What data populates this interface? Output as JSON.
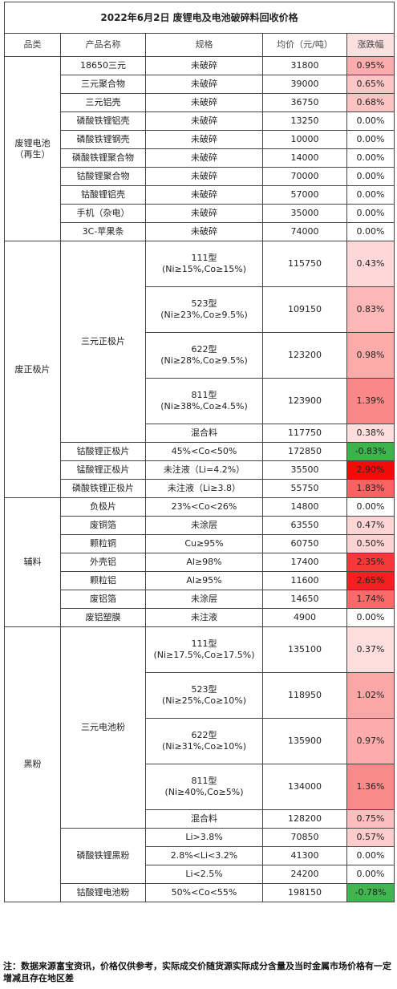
{
  "title": "2022年6月2日 废锂电及电池破碎料回收价格",
  "header": [
    "品类",
    "产品名称",
    "规格",
    "均价（元/吨）",
    "涨跌幅"
  ],
  "groups": [
    {
      "category": "废锂电池（再生）",
      "items": [
        {
          "product": "18650三元",
          "rows": [
            {
              "spec": "未破碎",
              "price": "31800",
              "change": "0.95%"
            }
          ]
        },
        {
          "product": "三元聚合物",
          "rows": [
            {
              "spec": "未破碎",
              "price": "39000",
              "change": "0.65%"
            }
          ]
        },
        {
          "product": "三元铝壳",
          "rows": [
            {
              "spec": "未破碎",
              "price": "36750",
              "change": "0.68%"
            }
          ]
        },
        {
          "product": "磷酸铁锂铝壳",
          "rows": [
            {
              "spec": "未破碎",
              "price": "13250",
              "change": "0.00%"
            }
          ]
        },
        {
          "product": "磷酸铁锂钢壳",
          "rows": [
            {
              "spec": "未破碎",
              "price": "10000",
              "change": "0.00%"
            }
          ]
        },
        {
          "product": "磷酸铁锂聚合物",
          "rows": [
            {
              "spec": "未破碎",
              "price": "14000",
              "change": "0.00%"
            }
          ]
        },
        {
          "product": "钴酸锂聚合物",
          "rows": [
            {
              "spec": "未破碎",
              "price": "70000",
              "change": "0.00%"
            }
          ]
        },
        {
          "product": "钴酸锂铝壳",
          "rows": [
            {
              "spec": "未破碎",
              "price": "57000",
              "change": "0.00%"
            }
          ]
        },
        {
          "product": "手机（杂电）",
          "rows": [
            {
              "spec": "未破碎",
              "price": "35000",
              "change": "0.00%"
            }
          ]
        },
        {
          "product": "3C-苹果条",
          "rows": [
            {
              "spec": "未破碎",
              "price": "74000",
              "change": "0.00%"
            }
          ]
        }
      ]
    },
    {
      "category": "废正极片",
      "items": [
        {
          "product": "三元正极片",
          "rows": [
            {
              "spec": "111型\n(Ni≥15%,Co≥15%)",
              "price": "115750",
              "change": "0.43%"
            },
            {
              "spec": "523型\n(Ni≥23%,Co≥9.5%)",
              "price": "109150",
              "change": "0.83%"
            },
            {
              "spec": "622型\n(Ni≥28%,Co≥9.5%)",
              "price": "123200",
              "change": "0.98%"
            },
            {
              "spec": "811型\n(Ni≥38%,Co≥4.5%)",
              "price": "123900",
              "change": "1.39%"
            },
            {
              "spec": "混合料",
              "price": "117750",
              "change": "0.38%"
            }
          ]
        },
        {
          "product": "钴酸锂正极片",
          "rows": [
            {
              "spec": "45%<Co<50%",
              "price": "172850",
              "change": "-0.83%"
            }
          ]
        },
        {
          "product": "锰酸锂正极片",
          "rows": [
            {
              "spec": "未注液（Li=4.2%）",
              "price": "35500",
              "change": "2.90%"
            }
          ]
        },
        {
          "product": "磷酸铁锂正极片",
          "rows": [
            {
              "spec": "未注液（Li≥3.8）",
              "price": "55750",
              "change": "1.83%"
            }
          ]
        }
      ]
    },
    {
      "category": "辅料",
      "items": [
        {
          "product": "负极片",
          "rows": [
            {
              "spec": "23%<Co<26%",
              "price": "14800",
              "change": "0.00%"
            }
          ]
        },
        {
          "product": "废铜箔",
          "rows": [
            {
              "spec": "未涂层",
              "price": "63550",
              "change": "0.47%"
            }
          ]
        },
        {
          "product": "颗粒铜",
          "rows": [
            {
              "spec": "Cu≥95%",
              "price": "60750",
              "change": "0.50%"
            }
          ]
        },
        {
          "product": "外壳铝",
          "rows": [
            {
              "spec": "Al≥98%",
              "price": "17400",
              "change": "2.35%"
            }
          ]
        },
        {
          "product": "颗粒铝",
          "rows": [
            {
              "spec": "Al≥95%",
              "price": "11600",
              "change": "2.65%"
            }
          ]
        },
        {
          "product": "废铝箔",
          "rows": [
            {
              "spec": "未涂层",
              "price": "14650",
              "change": "1.74%"
            }
          ]
        },
        {
          "product": "废铝塑膜",
          "rows": [
            {
              "spec": "未注液",
              "price": "4900",
              "change": "0.00%"
            }
          ]
        }
      ]
    },
    {
      "category": "黑粉",
      "items": [
        {
          "product": "三元电池粉",
          "rows": [
            {
              "spec": "111型\n(Ni≥17.5%,Co≥17.5%)",
              "price": "135100",
              "change": "0.37%"
            },
            {
              "spec": "523型\n(Ni≥25%,Co≥10%)",
              "price": "118950",
              "change": "1.02%"
            },
            {
              "spec": "622型\n(Ni≥31%,Co≥10%)",
              "price": "135900",
              "change": "0.97%"
            },
            {
              "spec": "811型\n(Ni≥40%,Co≥5%)",
              "price": "134000",
              "change": "1.36%"
            },
            {
              "spec": "混合料",
              "price": "128200",
              "change": "0.75%"
            }
          ]
        },
        {
          "product": "磷酸铁锂黑粉",
          "rows": [
            {
              "spec": "Li>3.8%",
              "price": "70850",
              "change": "0.57%"
            },
            {
              "spec": "2.8%<Li<3.2%",
              "price": "41300",
              "change": "0.00%"
            },
            {
              "spec": "Li<2.5%",
              "price": "24200",
              "change": "0.00%"
            }
          ]
        },
        {
          "product": "钴酸锂电池粉",
          "rows": [
            {
              "spec": "50%<Co<55%",
              "price": "198150",
              "change": "-0.78%"
            }
          ]
        }
      ]
    }
  ],
  "note": "注：数据来源富宝资讯，价格仅供参考，实际成交价随货源实际成分含量及当时金属市场价格有一定增减且存在地区差"
}
